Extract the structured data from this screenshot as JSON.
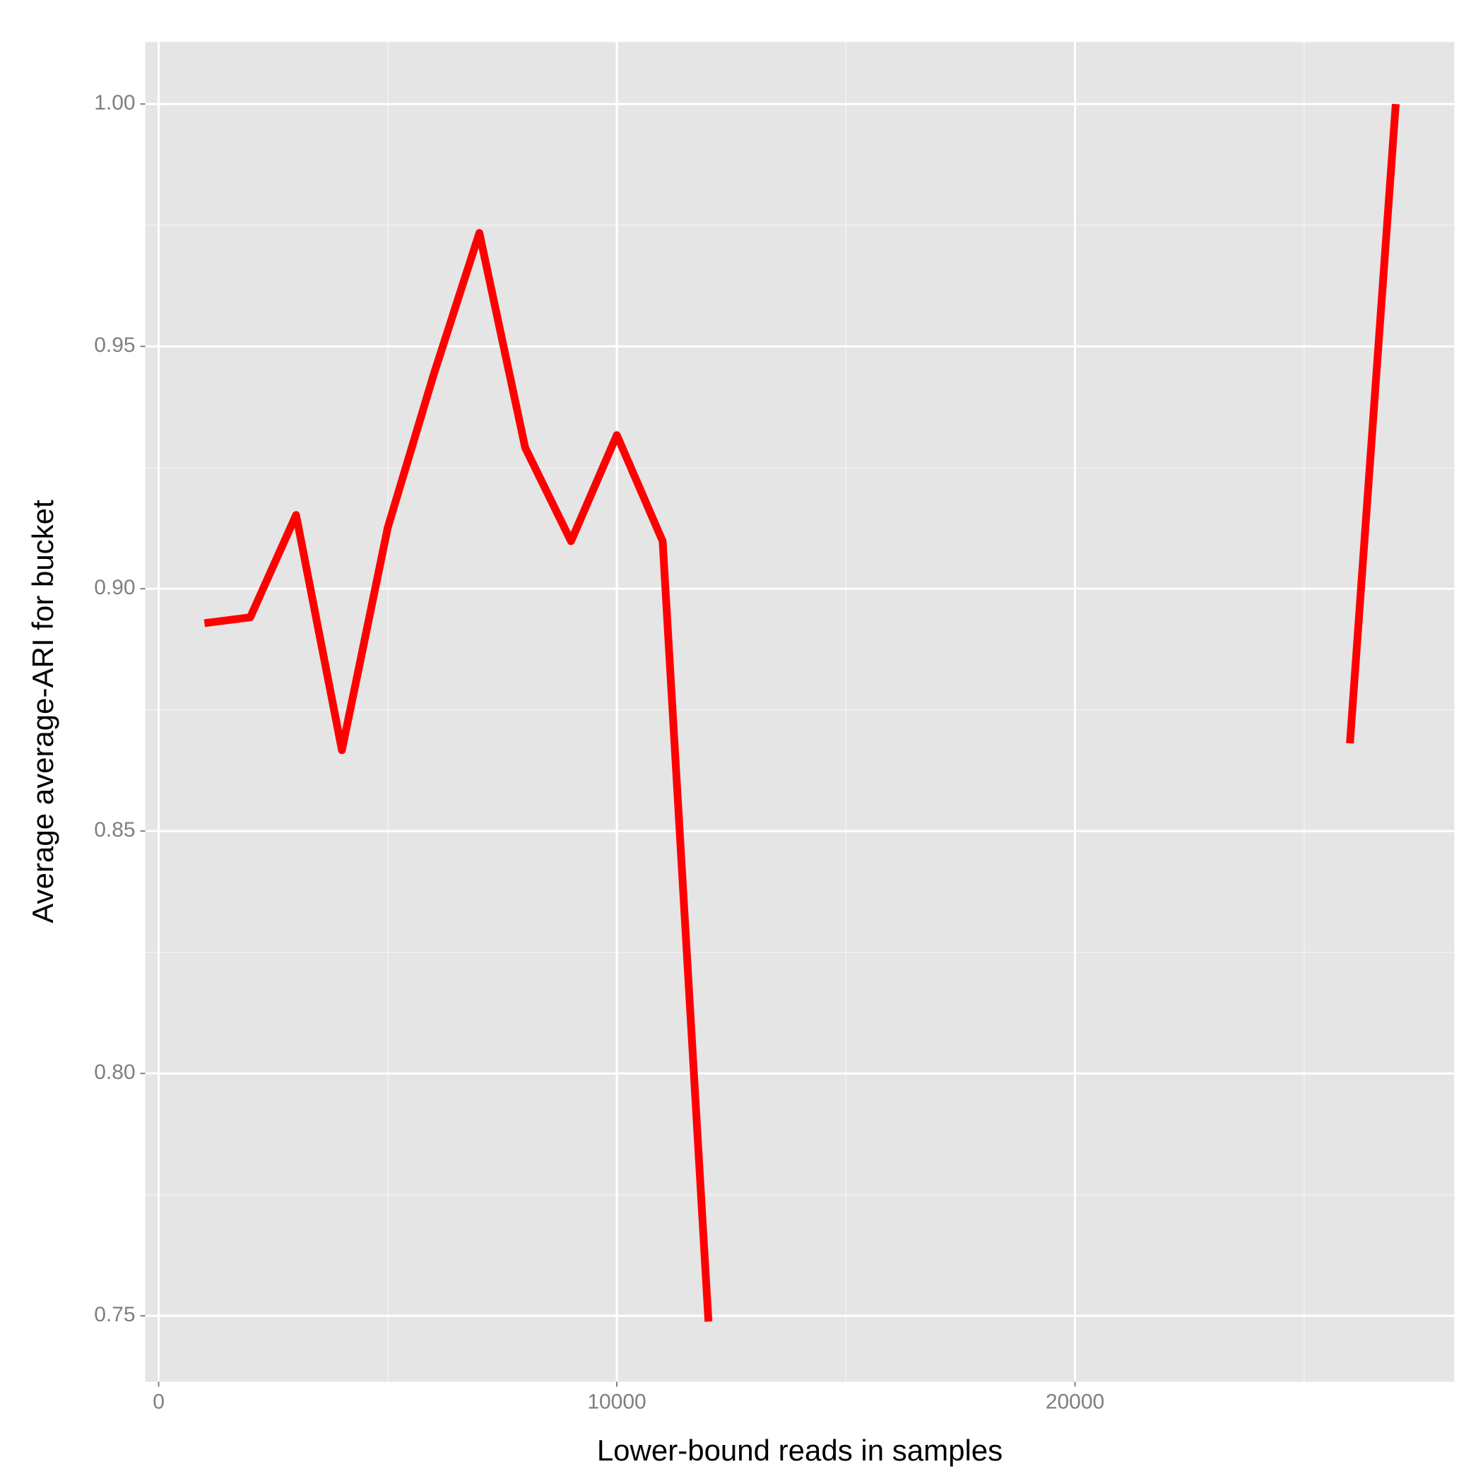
{
  "chart_data": {
    "type": "line",
    "xlabel": "Lower-bound reads in samples",
    "ylabel": "Average average-ARI for bucket",
    "x": [
      1000,
      2000,
      3000,
      4000,
      5000,
      6000,
      7000,
      8000,
      9000,
      10000,
      11000,
      12000,
      13000,
      14000,
      15000,
      16000,
      17000,
      18000,
      19000,
      20000,
      21000,
      22000,
      23000,
      24000,
      25000,
      26000,
      27000
    ],
    "series": [
      {
        "color": "#ff0000",
        "values": [
          0.8929,
          0.8941,
          0.9152,
          0.8667,
          0.9126,
          0.9441,
          0.9734,
          0.9291,
          0.9098,
          0.9317,
          0.9098,
          0.7488,
          null,
          null,
          null,
          null,
          null,
          null,
          null,
          null,
          null,
          null,
          null,
          null,
          null,
          0.8681,
          1.0
        ]
      }
    ],
    "xlim": [
      -292,
      28280
    ],
    "ylim": [
      0.7364,
      1.0128
    ],
    "xticks": [
      0,
      10000,
      20000
    ],
    "xminor": [
      5000,
      15000,
      25000
    ],
    "yticks": [
      {
        "value": 0.75,
        "label": "0.75"
      },
      {
        "value": 0.8,
        "label": "0.80"
      },
      {
        "value": 0.85,
        "label": "0.85"
      },
      {
        "value": 0.9,
        "label": "0.90"
      },
      {
        "value": 0.95,
        "label": "0.95"
      },
      {
        "value": 1.0,
        "label": "1.00"
      }
    ],
    "yminor": [
      0.775,
      0.825,
      0.875,
      0.925,
      0.975
    ],
    "grid": true
  }
}
